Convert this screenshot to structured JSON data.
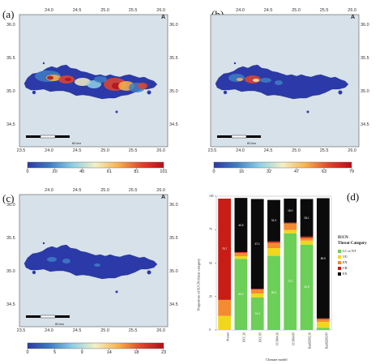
{
  "map_ticks": {
    "x_bottom": [
      "23.5",
      "24.0",
      "24.5",
      "25.0",
      "25.5",
      "26.0"
    ],
    "x_top": [
      "24.0",
      "24.5",
      "25.0",
      "25.5",
      "26.0"
    ],
    "y_right": [
      "36.0",
      "35.5",
      "35.0",
      "34.5"
    ],
    "y_left": [
      "36.0",
      "35.5",
      "35.0",
      "34.5"
    ]
  },
  "north_arrow": "A",
  "panels": [
    {
      "label": "(a)",
      "scale_text": "60 km",
      "colorbar_ticks": [
        "0",
        "20",
        "40",
        "61",
        "81",
        "101"
      ]
    },
    {
      "label": "(b)",
      "scale_text": "60 km",
      "colorbar_ticks": [
        "0",
        "16",
        "32",
        "47",
        "63",
        "79"
      ]
    },
    {
      "label": "(c)",
      "scale_text": "60 km",
      "colorbar_ticks": [
        "0",
        "5",
        "9",
        "14",
        "18",
        "23"
      ]
    }
  ],
  "colors": {
    "sea": "#d6e1ea",
    "land_low": "#2b3aa8",
    "ramp": [
      "#2c38a4",
      "#3f7ec4",
      "#8fd0e6",
      "#f4f0c4",
      "#f8b24c",
      "#e2452a",
      "#b1101a"
    ]
  },
  "chart_panel": {
    "label": "(d)",
    "xlabel": "Climate model",
    "ylabel": "Proportion of IUCN threat category",
    "legend_title_1": "IUCN",
    "legend_title_2": "Threat Category",
    "legend": [
      {
        "name": "LC or NT",
        "color": "#6ccf57"
      },
      {
        "name": "VU",
        "color": "#f1d71c"
      },
      {
        "name": "EN",
        "color": "#f48a32"
      },
      {
        "name": "CR",
        "color": "#c71d15"
      },
      {
        "name": "EX",
        "color": "#0b0b0b"
      }
    ]
  },
  "chart_data": {
    "type": "bar",
    "stacked": true,
    "categories": [
      "Present",
      "BCC 26",
      "BCC 85",
      "CCSM4 26",
      "CCSM4 85",
      "HadGEM2 26",
      "HadGEM2 85"
    ],
    "ylim": [
      0,
      100
    ],
    "yticks": [
      "0",
      "25",
      "50",
      "75",
      "100"
    ],
    "series": [
      {
        "name": "LC or NT",
        "values": [
          0,
          53.2,
          24.3,
          55.4,
          72.2,
          63.8,
          1.6
        ]
      },
      {
        "name": "VU",
        "values": [
          10.5,
          2.0,
          3.0,
          5.8,
          2.5,
          3.0,
          4.5
        ]
      },
      {
        "name": "EN",
        "values": [
          12.0,
          2.5,
          3.0,
          4.0,
          5.0,
          2.0,
          2.0
        ]
      },
      {
        "name": "CR",
        "values": [
          75.7,
          0.5,
          0.5,
          1.0,
          0.5,
          1.0,
          0.5
        ]
      },
      {
        "name": "EX",
        "values": [
          0,
          40.5,
          67.1,
          31.0,
          18.0,
          28.1,
          89.9
        ]
      }
    ],
    "bar_labels": [
      [
        "",
        "53.2",
        "24.3",
        "55.4",
        "72.2",
        "63.8",
        ""
      ],
      [
        "",
        "",
        "",
        "",
        "",
        "",
        ""
      ],
      [
        "",
        "",
        "",
        "",
        "",
        "",
        ""
      ],
      [
        "75.7",
        "",
        "",
        "",
        "",
        "",
        ""
      ],
      [
        "",
        "40.5",
        "67.1",
        "31.0",
        "18.0",
        "28.1",
        "89.9"
      ]
    ]
  }
}
